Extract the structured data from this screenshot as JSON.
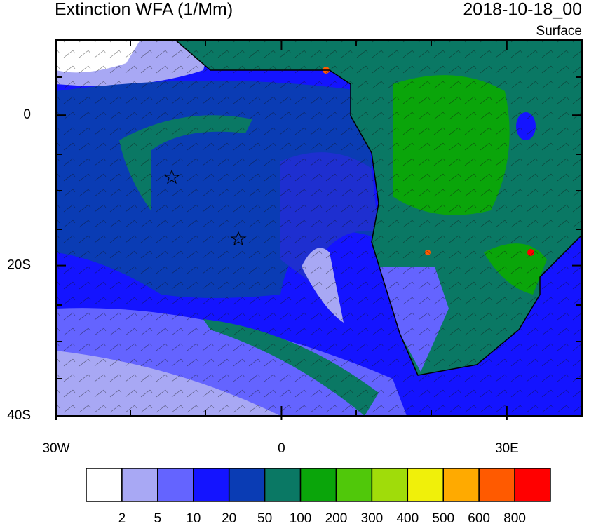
{
  "title": "Extinction WFA (1/Mm)",
  "date": "2018-10-18_00",
  "level": "Surface",
  "map": {
    "xlim": [
      -30,
      40
    ],
    "ylim": [
      -40,
      10
    ],
    "xticks": [
      {
        "value": -30,
        "label": "30W"
      },
      {
        "value": 0,
        "label": "0"
      },
      {
        "value": 30,
        "label": "30E"
      }
    ],
    "yticks": [
      {
        "value": 0,
        "label": "0"
      },
      {
        "value": -20,
        "label": "20S"
      },
      {
        "value": -40,
        "label": "40S"
      }
    ]
  },
  "colorbar": {
    "colors": [
      "#ffffff",
      "#a8a8f4",
      "#6464ff",
      "#1414ff",
      "#0a3cb4",
      "#0a7864",
      "#0aa50a",
      "#50c80a",
      "#a0dc0a",
      "#f0f00a",
      "#ffaa00",
      "#ff5a00",
      "#ff0000"
    ],
    "levels": [
      2,
      5,
      10,
      20,
      50,
      100,
      200,
      300,
      400,
      500,
      600,
      800
    ]
  }
}
